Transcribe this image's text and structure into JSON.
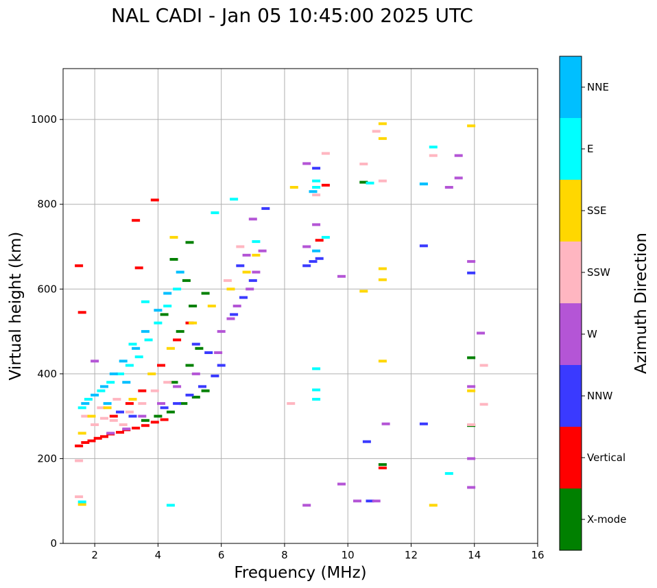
{
  "chart_data": {
    "type": "scatter",
    "title": "NAL CADI - Jan 05 10:45:00 2025 UTC",
    "xlabel": "Frequency (MHz)",
    "ylabel": "Virtual height (km)",
    "xlim": [
      1,
      16
    ],
    "ylim": [
      0,
      1120
    ],
    "xticks": [
      2,
      4,
      6,
      8,
      10,
      12,
      14,
      16
    ],
    "yticks": [
      0,
      200,
      400,
      600,
      800,
      1000
    ],
    "grid": true,
    "colorbar": {
      "label": "Azimuth Direction",
      "categories": [
        {
          "name": "X-mode",
          "color": "#008000"
        },
        {
          "name": "Vertical",
          "color": "#ff0000"
        },
        {
          "name": "NNW",
          "color": "#3a3aff"
        },
        {
          "name": "W",
          "color": "#b455d6"
        },
        {
          "name": "SSW",
          "color": "#ffb6c1"
        },
        {
          "name": "SSE",
          "color": "#ffd700"
        },
        {
          "name": "E",
          "color": "#00ffff"
        },
        {
          "name": "NNE",
          "color": "#00bfff"
        }
      ]
    },
    "clusters": [
      {
        "direction": "Vertical",
        "points": [
          [
            1.5,
            230
          ],
          [
            1.7,
            238
          ],
          [
            1.9,
            242
          ],
          [
            2.1,
            248
          ],
          [
            2.3,
            252
          ],
          [
            2.5,
            258
          ],
          [
            2.8,
            262
          ],
          [
            3.0,
            268
          ],
          [
            3.3,
            272
          ],
          [
            3.6,
            278
          ],
          [
            3.9,
            286
          ],
          [
            4.2,
            292
          ],
          [
            1.6,
            545
          ],
          [
            1.5,
            655
          ],
          [
            3.4,
            650
          ],
          [
            3.3,
            762
          ],
          [
            3.9,
            810
          ],
          [
            9.3,
            845
          ],
          [
            9.1,
            715
          ],
          [
            11.1,
            178
          ],
          [
            2.6,
            300
          ],
          [
            3.1,
            330
          ],
          [
            3.5,
            360
          ],
          [
            4.1,
            420
          ],
          [
            4.6,
            480
          ],
          [
            5.0,
            520
          ]
        ]
      },
      {
        "direction": "X-mode",
        "points": [
          [
            3.6,
            290
          ],
          [
            4.0,
            300
          ],
          [
            4.4,
            310
          ],
          [
            4.8,
            330
          ],
          [
            5.2,
            345
          ],
          [
            5.5,
            360
          ],
          [
            4.5,
            380
          ],
          [
            5.0,
            420
          ],
          [
            5.3,
            460
          ],
          [
            4.7,
            500
          ],
          [
            5.1,
            560
          ],
          [
            4.9,
            620
          ],
          [
            4.5,
            670
          ],
          [
            5.5,
            590
          ],
          [
            4.2,
            540
          ],
          [
            13.9,
            438
          ],
          [
            13.9,
            278
          ],
          [
            10.5,
            852
          ],
          [
            11.1,
            186
          ],
          [
            5.0,
            710
          ]
        ]
      },
      {
        "direction": "NNW",
        "points": [
          [
            4.2,
            320
          ],
          [
            4.6,
            330
          ],
          [
            5.0,
            350
          ],
          [
            5.4,
            370
          ],
          [
            5.8,
            395
          ],
          [
            6.0,
            420
          ],
          [
            5.6,
            450
          ],
          [
            5.2,
            470
          ],
          [
            6.4,
            540
          ],
          [
            6.7,
            580
          ],
          [
            7.0,
            620
          ],
          [
            6.6,
            655
          ],
          [
            8.7,
            655
          ],
          [
            8.9,
            665
          ],
          [
            9.1,
            672
          ],
          [
            9.0,
            885
          ],
          [
            12.4,
            702
          ],
          [
            13.9,
            638
          ],
          [
            12.4,
            282
          ],
          [
            10.6,
            240
          ],
          [
            10.7,
            100
          ],
          [
            7.4,
            790
          ],
          [
            3.2,
            300
          ],
          [
            2.8,
            310
          ]
        ]
      },
      {
        "direction": "W",
        "points": [
          [
            2.5,
            260
          ],
          [
            3.0,
            270
          ],
          [
            3.5,
            300
          ],
          [
            4.1,
            330
          ],
          [
            4.6,
            370
          ],
          [
            5.2,
            400
          ],
          [
            5.9,
            450
          ],
          [
            6.0,
            500
          ],
          [
            6.3,
            530
          ],
          [
            6.5,
            560
          ],
          [
            6.9,
            600
          ],
          [
            7.1,
            640
          ],
          [
            6.8,
            680
          ],
          [
            7.3,
            690
          ],
          [
            8.7,
            700
          ],
          [
            9.0,
            752
          ],
          [
            8.7,
            896
          ],
          [
            13.9,
            665
          ],
          [
            14.2,
            496
          ],
          [
            13.9,
            370
          ],
          [
            13.9,
            200
          ],
          [
            13.9,
            132
          ],
          [
            9.8,
            630
          ],
          [
            9.8,
            140
          ],
          [
            8.7,
            90
          ],
          [
            10.3,
            100
          ],
          [
            10.9,
            100
          ],
          [
            11.2,
            282
          ],
          [
            13.5,
            862
          ],
          [
            13.5,
            915
          ],
          [
            13.2,
            840
          ],
          [
            2.0,
            430
          ],
          [
            7.0,
            765
          ]
        ]
      },
      {
        "direction": "SSW",
        "points": [
          [
            1.7,
            300
          ],
          [
            2.0,
            280
          ],
          [
            2.3,
            295
          ],
          [
            2.6,
            290
          ],
          [
            2.9,
            280
          ],
          [
            3.1,
            310
          ],
          [
            3.5,
            330
          ],
          [
            3.9,
            360
          ],
          [
            4.3,
            380
          ],
          [
            2.2,
            320
          ],
          [
            2.7,
            340
          ],
          [
            1.5,
            110
          ],
          [
            1.5,
            195
          ],
          [
            9.0,
            822
          ],
          [
            9.3,
            920
          ],
          [
            10.5,
            895
          ],
          [
            10.9,
            972
          ],
          [
            11.1,
            855
          ],
          [
            12.7,
            915
          ],
          [
            14.3,
            420
          ],
          [
            14.3,
            328
          ],
          [
            13.9,
            280
          ],
          [
            8.2,
            330
          ],
          [
            6.2,
            620
          ],
          [
            6.6,
            700
          ]
        ]
      },
      {
        "direction": "SSE",
        "points": [
          [
            1.6,
            260
          ],
          [
            1.9,
            300
          ],
          [
            2.4,
            320
          ],
          [
            3.2,
            340
          ],
          [
            3.8,
            400
          ],
          [
            4.4,
            460
          ],
          [
            5.1,
            520
          ],
          [
            5.7,
            560
          ],
          [
            6.3,
            600
          ],
          [
            6.8,
            640
          ],
          [
            7.1,
            680
          ],
          [
            4.5,
            722
          ],
          [
            1.6,
            92
          ],
          [
            8.3,
            840
          ],
          [
            10.5,
            595
          ],
          [
            11.1,
            622
          ],
          [
            11.1,
            648
          ],
          [
            11.1,
            430
          ],
          [
            11.1,
            955
          ],
          [
            11.1,
            990
          ],
          [
            13.9,
            985
          ],
          [
            13.9,
            360
          ],
          [
            12.7,
            90
          ]
        ]
      },
      {
        "direction": "E",
        "points": [
          [
            1.6,
            320
          ],
          [
            1.8,
            340
          ],
          [
            2.2,
            360
          ],
          [
            2.5,
            380
          ],
          [
            2.8,
            400
          ],
          [
            3.1,
            420
          ],
          [
            3.4,
            440
          ],
          [
            3.7,
            480
          ],
          [
            4.0,
            520
          ],
          [
            4.3,
            560
          ],
          [
            4.6,
            600
          ],
          [
            3.6,
            570
          ],
          [
            3.2,
            470
          ],
          [
            6.4,
            812
          ],
          [
            5.8,
            780
          ],
          [
            7.1,
            712
          ],
          [
            9.0,
            412
          ],
          [
            9.0,
            362
          ],
          [
            9.0,
            340
          ],
          [
            9.0,
            855
          ],
          [
            9.0,
            840
          ],
          [
            9.3,
            722
          ],
          [
            12.4,
            848
          ],
          [
            12.7,
            935
          ],
          [
            13.2,
            165
          ],
          [
            4.4,
            90
          ],
          [
            1.6,
            98
          ],
          [
            10.7,
            850
          ]
        ]
      },
      {
        "direction": "NNE",
        "points": [
          [
            1.7,
            330
          ],
          [
            2.0,
            350
          ],
          [
            2.3,
            370
          ],
          [
            2.6,
            400
          ],
          [
            2.9,
            430
          ],
          [
            3.3,
            460
          ],
          [
            3.6,
            500
          ],
          [
            4.0,
            550
          ],
          [
            4.3,
            590
          ],
          [
            4.7,
            640
          ],
          [
            3.0,
            380
          ],
          [
            2.4,
            330
          ],
          [
            8.9,
            830
          ],
          [
            9.0,
            690
          ],
          [
            12.4,
            848
          ]
        ]
      }
    ]
  }
}
